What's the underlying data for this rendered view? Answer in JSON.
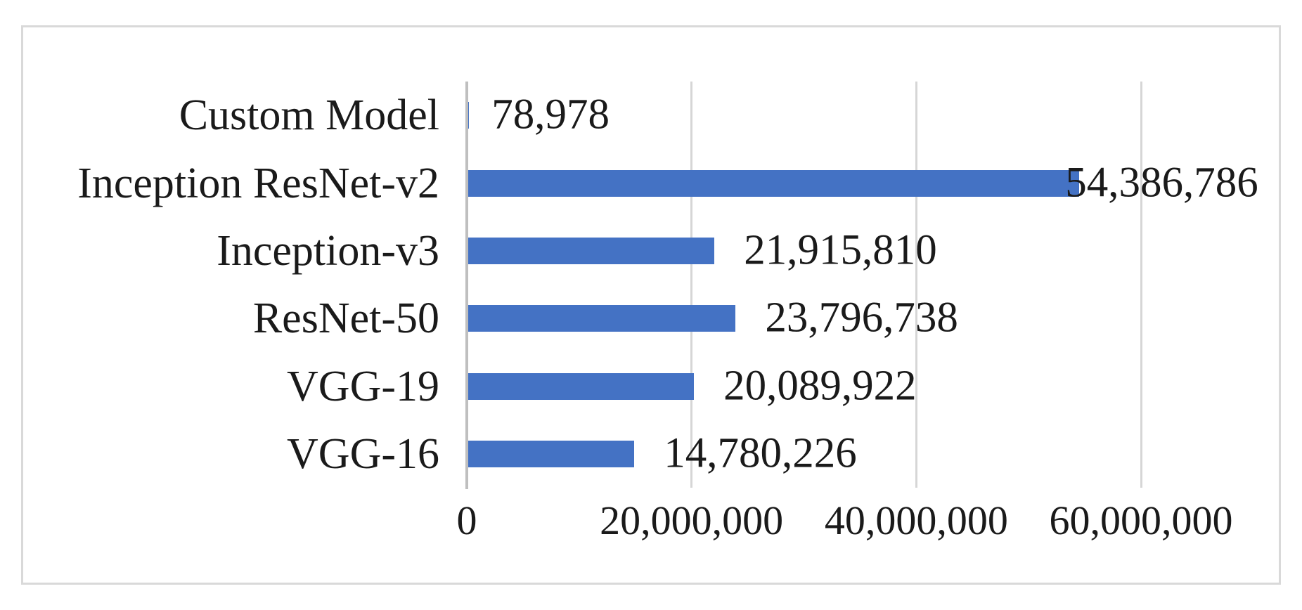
{
  "chart_data": {
    "type": "bar",
    "orientation": "horizontal",
    "categories": [
      "Custom Model",
      "Inception ResNet-v2",
      "Inception-v3",
      "ResNet-50",
      "VGG-19",
      "VGG-16"
    ],
    "values": [
      78978,
      54386786,
      21915810,
      23796738,
      20089922,
      14780226
    ],
    "value_labels": [
      "78,978",
      "54,386,786",
      "21,915,810",
      "23,796,738",
      "20,089,922",
      "14,780,226"
    ],
    "x_ticks": [
      0,
      20000000,
      40000000,
      60000000
    ],
    "x_tick_labels": [
      "0",
      "20,000,000",
      "40,000,000",
      "60,000,000"
    ],
    "xlim": [
      0,
      60000000
    ],
    "grid": "vertical-major-on",
    "legend": "none",
    "bar_color": "#4472c4",
    "gridline_color": "#d6d6d6",
    "axis_line_color": "#bfbfbf",
    "frame_border_color": "#d9d9d9",
    "text_color": "#1a1a1a"
  }
}
